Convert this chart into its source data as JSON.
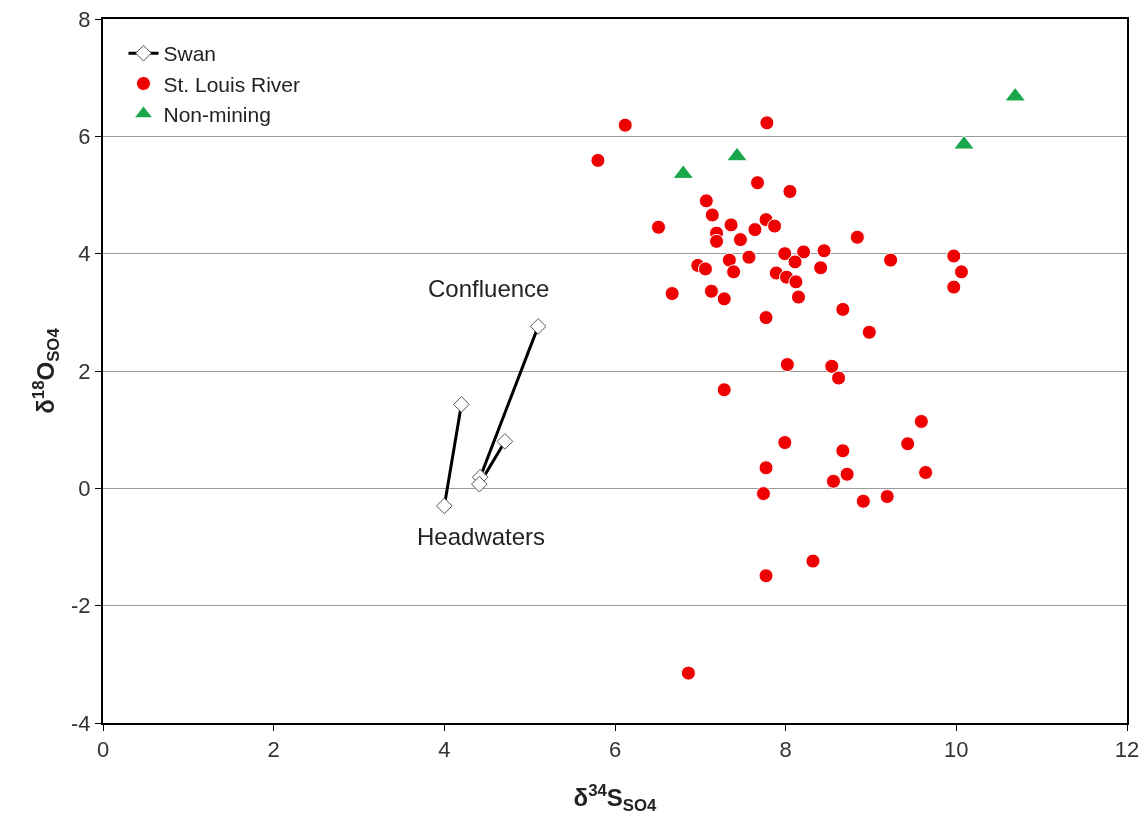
{
  "chart_data": {
    "type": "scatter",
    "xlabel": "δ$^{34}$S$_{SO4}$",
    "ylabel": "δ$^{18}$O$_{SO4}$",
    "xlim": [
      0,
      12
    ],
    "xticks": [
      0,
      2,
      4,
      6,
      8,
      10,
      12
    ],
    "ylim": [
      -4,
      8
    ],
    "yticks": [
      -4,
      -2,
      0,
      2,
      4,
      6,
      8
    ],
    "grid": "y",
    "legend": "top left",
    "annotations": [
      {
        "text": "Confluence",
        "x": 5.1,
        "y": 2.76
      },
      {
        "text": "Headwaters",
        "x": 4.0,
        "y": -0.3
      }
    ],
    "series": [
      {
        "name": "Swan",
        "type": "line",
        "marker": "diamond",
        "color": "#000000",
        "x": [
          4.0,
          4.2,
          4.3,
          4.42,
          5.1,
          5.0,
          4.41,
          4.71
        ],
        "values": [
          -0.3,
          1.43,
          null,
          0.19,
          2.76,
          null,
          0.07,
          0.8
        ]
      },
      {
        "name": "St. Louis River",
        "marker": "circle",
        "color": "#ee0000",
        "x": [
          6.12,
          7.78,
          5.8,
          7.67,
          8.05,
          7.07,
          7.14,
          6.51,
          7.36,
          7.77,
          7.87,
          7.64,
          7.19,
          7.19,
          7.47,
          8.84,
          7.99,
          8.21,
          8.45,
          9.97,
          9.23,
          7.57,
          7.34,
          8.11,
          6.97,
          7.06,
          7.39,
          7.89,
          8.01,
          8.12,
          8.41,
          10.06,
          9.97,
          6.67,
          7.13,
          7.28,
          8.15,
          8.67,
          7.77,
          8.98,
          8.02,
          8.54,
          8.62,
          7.28,
          9.59,
          9.43,
          7.99,
          8.67,
          7.77,
          8.72,
          9.64,
          8.56,
          7.74,
          9.19,
          8.91,
          8.32,
          7.77,
          6.86
        ],
        "values": [
          6.19,
          6.23,
          5.59,
          5.21,
          5.06,
          4.9,
          4.66,
          4.45,
          4.49,
          4.58,
          4.47,
          4.41,
          4.35,
          4.21,
          4.24,
          4.28,
          4.0,
          4.03,
          4.05,
          3.96,
          3.89,
          3.94,
          3.89,
          3.86,
          3.8,
          3.74,
          3.69,
          3.67,
          3.6,
          3.52,
          3.76,
          3.69,
          3.43,
          3.32,
          3.36,
          3.23,
          3.26,
          3.05,
          2.91,
          2.66,
          2.11,
          2.08,
          1.88,
          1.68,
          1.14,
          0.76,
          0.78,
          0.64,
          0.35,
          0.24,
          0.27,
          0.12,
          -0.09,
          -0.14,
          -0.22,
          -1.24,
          -1.49,
          -3.15
        ]
      },
      {
        "name": "Non-mining",
        "marker": "triangle",
        "color": "#1aa64a",
        "x": [
          6.8,
          7.43,
          10.09,
          10.69
        ],
        "values": [
          5.36,
          5.66,
          5.86,
          6.68
        ]
      }
    ]
  }
}
